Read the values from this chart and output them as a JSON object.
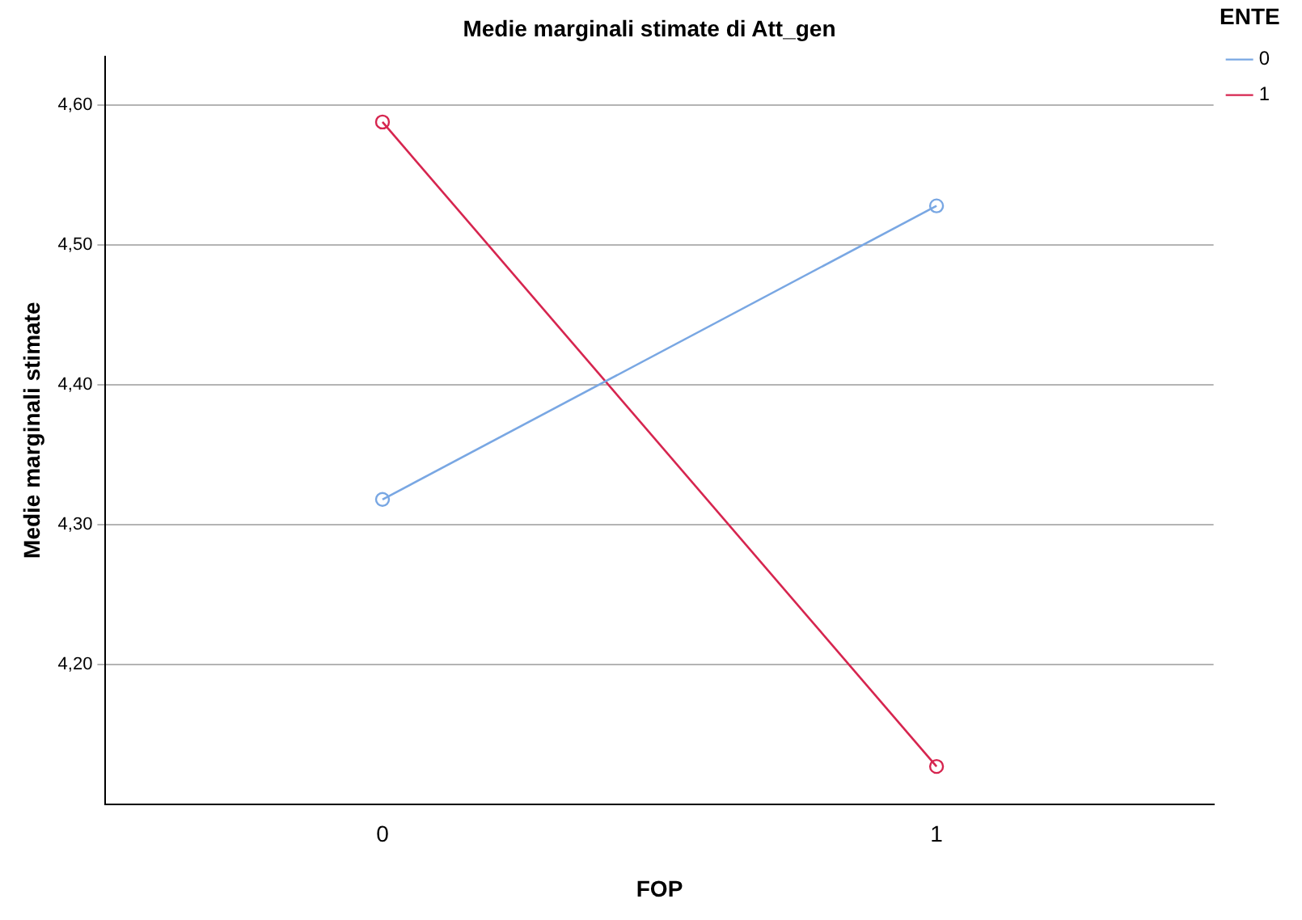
{
  "chart_data": {
    "type": "line",
    "title": "Medie marginali stimate di Att_gen",
    "xlabel": "FOP",
    "ylabel": "Medie marginali stimate",
    "legend_title": "ENTE",
    "categories": [
      "0",
      "1"
    ],
    "series": [
      {
        "name": "0",
        "color": "#79a7e3",
        "values": [
          4.318,
          4.528
        ]
      },
      {
        "name": "1",
        "color": "#d6254f",
        "values": [
          4.588,
          4.127
        ]
      }
    ],
    "ylim": [
      4.1,
      4.635
    ],
    "yticks": [
      {
        "value": 4.2,
        "label": "4,20"
      },
      {
        "value": 4.3,
        "label": "4,30"
      },
      {
        "value": 4.4,
        "label": "4,40"
      },
      {
        "value": 4.5,
        "label": "4,50"
      },
      {
        "value": 4.6,
        "label": "4,60"
      }
    ],
    "grid": "y",
    "legend": "top right",
    "marker": "circle",
    "line_style": "solid"
  }
}
